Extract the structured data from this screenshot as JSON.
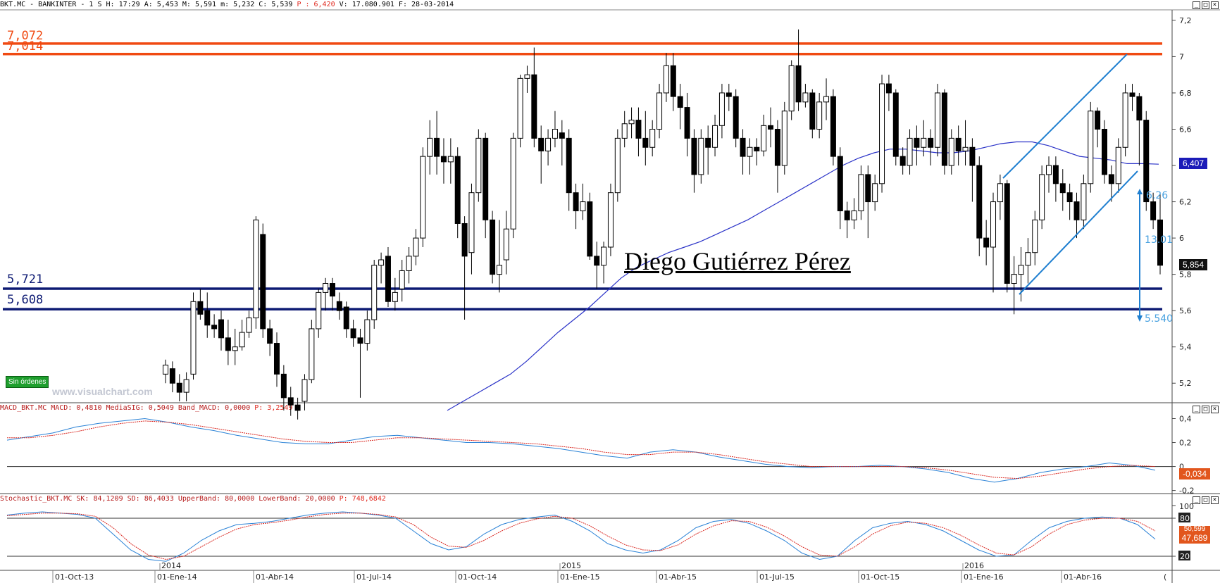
{
  "header_main": {
    "text": "BKT.MC - BANKINTER -  1 S H: 17:29 A: 5,453 M: 5,591 m: 5,232 C: 5,539 ",
    "p_label": "P : 6,420",
    "tail": " V: 17.080.901 F: 28-03-2014"
  },
  "header_macd": {
    "text": "MACD_BKT.MC MACD: 0,4810 MediaSIG: 0,5049 Band_MACD: 0,0000 ",
    "p_label": "P: 3,2549"
  },
  "header_stoch": {
    "text": "Stochastic_BKT.MC SK: 84,1209 SD: 86,4033 UpperBand: 80,0000 LowerBand: 20,0000 ",
    "p_label": "P: 748,6842"
  },
  "colors": {
    "resistance": "#f04a12",
    "support": "#0d1a73",
    "ma": "#2b33c8",
    "channel": "#1f7fd0",
    "macd_line": "#2a82d6",
    "signal_line": "#d9261f"
  },
  "levels": {
    "resistance_1": "7,072",
    "resistance_2": "7,014",
    "support_1": "5,721",
    "support_2": "5,608"
  },
  "badges": {
    "ma_value": "6,407",
    "last_price": "5,854",
    "macd_value": "-0,034",
    "stoch_value": "47,689",
    "stoch_hidden": "50,599"
  },
  "projection": {
    "top": "6.26",
    "pct": "13.01",
    "bottom": "5.540"
  },
  "overlay": {
    "sin_ordenes": "Sin órdenes",
    "watermark": "www.visualchart.com",
    "author": "Diego Gutiérrez Pérez"
  },
  "x_axis": {
    "years": [
      "2014",
      "2015",
      "2016"
    ],
    "months": [
      "01-Oct-13",
      "01-Ene-14",
      "01-Abr-14",
      "01-Jul-14",
      "01-Oct-14",
      "01-Ene-15",
      "01-Abr-15",
      "01-Jul-15",
      "01-Oct-15",
      "01-Ene-16",
      "01-Abr-16"
    ],
    "last": "("
  },
  "chart_data": [
    {
      "type": "candlestick",
      "title": "BKT.MC - BANKINTER - 1 S",
      "ylim": [
        5.1,
        7.25
      ],
      "y_ticks": [
        "7,2",
        "7",
        "6,8",
        "6,6",
        "6,4",
        "6,2",
        "6",
        "5,8",
        "5,6",
        "5,4",
        "5,2"
      ],
      "horizontal_levels": [
        7.072,
        7.014,
        5.721,
        5.608
      ],
      "candles": [
        [
          5.25,
          5.3,
          5.2,
          5.33
        ],
        [
          5.28,
          5.2,
          5.15,
          5.32
        ],
        [
          5.2,
          5.15,
          5.1,
          5.25
        ],
        [
          5.15,
          5.22,
          5.1,
          5.26
        ],
        [
          5.25,
          5.65,
          5.22,
          5.7
        ],
        [
          5.65,
          5.58,
          5.55,
          5.72
        ],
        [
          5.6,
          5.52,
          5.45,
          5.7
        ],
        [
          5.52,
          5.5,
          5.45,
          5.58
        ],
        [
          5.55,
          5.45,
          5.38,
          5.6
        ],
        [
          5.45,
          5.38,
          5.3,
          5.55
        ],
        [
          5.38,
          5.4,
          5.3,
          5.5
        ],
        [
          5.4,
          5.48,
          5.38,
          5.55
        ],
        [
          5.48,
          5.56,
          5.45,
          5.6
        ],
        [
          5.56,
          6.1,
          5.5,
          6.12
        ],
        [
          6.02,
          5.5,
          5.45,
          6.08
        ],
        [
          5.5,
          5.42,
          5.35,
          5.55
        ],
        [
          5.42,
          5.25,
          5.18,
          5.48
        ],
        [
          5.25,
          5.12,
          5.05,
          5.3
        ],
        [
          5.12,
          5.08,
          5.02,
          5.18
        ],
        [
          5.08,
          5.05,
          5.0,
          5.12
        ],
        [
          5.1,
          5.22,
          5.05,
          5.25
        ],
        [
          5.22,
          5.5,
          5.2,
          5.55
        ],
        [
          5.5,
          5.7,
          5.45,
          5.72
        ],
        [
          5.7,
          5.75,
          5.6,
          5.78
        ],
        [
          5.75,
          5.68,
          5.6,
          5.78
        ],
        [
          5.65,
          5.6,
          5.55,
          5.7
        ],
        [
          5.62,
          5.5,
          5.45,
          5.65
        ],
        [
          5.5,
          5.45,
          5.4,
          5.55
        ],
        [
          5.45,
          5.42,
          5.12,
          5.5
        ],
        [
          5.42,
          5.55,
          5.38,
          5.6
        ],
        [
          5.55,
          5.85,
          5.5,
          5.88
        ],
        [
          5.85,
          5.88,
          5.75,
          5.92
        ],
        [
          5.9,
          5.65,
          5.62,
          5.95
        ],
        [
          5.65,
          5.7,
          5.6,
          5.78
        ],
        [
          5.72,
          5.82,
          5.65,
          5.88
        ],
        [
          5.82,
          5.9,
          5.75,
          5.95
        ],
        [
          5.9,
          6.0,
          5.85,
          6.05
        ],
        [
          6.0,
          6.45,
          5.95,
          6.5
        ],
        [
          6.45,
          6.55,
          6.35,
          6.65
        ],
        [
          6.55,
          6.45,
          6.35,
          6.7
        ],
        [
          6.45,
          6.42,
          6.3,
          6.55
        ],
        [
          6.42,
          6.45,
          6.3,
          6.55
        ],
        [
          6.45,
          6.08,
          6.0,
          6.5
        ],
        [
          6.08,
          5.9,
          5.55,
          6.12
        ],
        [
          5.92,
          6.25,
          5.8,
          6.3
        ],
        [
          6.25,
          6.55,
          6.2,
          6.6
        ],
        [
          6.55,
          6.1,
          6.0,
          6.58
        ],
        [
          6.1,
          5.8,
          5.75,
          6.15
        ],
        [
          5.8,
          5.85,
          5.7,
          6.1
        ],
        [
          5.88,
          6.05,
          5.8,
          6.15
        ],
        [
          6.05,
          6.55,
          6.0,
          6.58
        ],
        [
          6.55,
          6.88,
          6.5,
          6.9
        ],
        [
          6.88,
          6.9,
          6.8,
          6.95
        ],
        [
          6.9,
          6.55,
          6.5,
          7.05
        ],
        [
          6.55,
          6.48,
          6.3,
          6.62
        ],
        [
          6.48,
          6.55,
          6.4,
          6.6
        ],
        [
          6.55,
          6.6,
          6.5,
          6.7
        ],
        [
          6.58,
          6.55,
          6.4,
          6.65
        ],
        [
          6.55,
          6.25,
          6.15,
          6.6
        ],
        [
          6.25,
          6.15,
          6.05,
          6.3
        ],
        [
          6.15,
          6.2,
          6.1,
          6.3
        ],
        [
          6.2,
          5.9,
          5.88,
          6.25
        ],
        [
          5.9,
          5.85,
          5.72,
          5.98
        ],
        [
          5.85,
          5.95,
          5.75,
          5.98
        ],
        [
          5.95,
          6.25,
          5.9,
          6.3
        ],
        [
          6.25,
          6.55,
          6.2,
          6.6
        ],
        [
          6.55,
          6.63,
          6.5,
          6.7
        ],
        [
          6.63,
          6.65,
          6.55,
          6.72
        ],
        [
          6.65,
          6.55,
          6.45,
          6.72
        ],
        [
          6.55,
          6.5,
          6.4,
          6.7
        ],
        [
          6.5,
          6.6,
          6.45,
          6.65
        ],
        [
          6.6,
          6.8,
          6.55,
          6.85
        ],
        [
          6.8,
          6.95,
          6.75,
          7.02
        ],
        [
          6.95,
          6.78,
          6.7,
          7.02
        ],
        [
          6.78,
          6.72,
          6.6,
          6.85
        ],
        [
          6.72,
          6.55,
          6.45,
          6.8
        ],
        [
          6.55,
          6.35,
          6.25,
          6.6
        ],
        [
          6.35,
          6.55,
          6.3,
          6.6
        ],
        [
          6.55,
          6.5,
          6.35,
          6.62
        ],
        [
          6.5,
          6.62,
          6.45,
          6.68
        ],
        [
          6.62,
          6.8,
          6.55,
          6.85
        ],
        [
          6.8,
          6.78,
          6.7,
          6.85
        ],
        [
          6.78,
          6.55,
          6.5,
          6.82
        ],
        [
          6.55,
          6.45,
          6.35,
          6.6
        ],
        [
          6.45,
          6.5,
          6.35,
          6.55
        ],
        [
          6.5,
          6.48,
          6.4,
          6.55
        ],
        [
          6.48,
          6.62,
          6.45,
          6.68
        ],
        [
          6.62,
          6.6,
          6.5,
          6.72
        ],
        [
          6.6,
          6.4,
          6.25,
          6.65
        ],
        [
          6.4,
          6.7,
          6.35,
          6.75
        ],
        [
          6.7,
          6.95,
          6.65,
          6.98
        ],
        [
          6.95,
          6.75,
          6.7,
          7.15
        ],
        [
          6.75,
          6.8,
          6.72,
          6.85
        ],
        [
          6.8,
          6.6,
          6.55,
          6.82
        ],
        [
          6.6,
          6.75,
          6.55,
          6.8
        ],
        [
          6.75,
          6.78,
          6.65,
          6.88
        ],
        [
          6.78,
          6.45,
          6.4,
          6.82
        ],
        [
          6.45,
          6.15,
          6.05,
          6.5
        ],
        [
          6.15,
          6.1,
          6.0,
          6.2
        ],
        [
          6.1,
          6.15,
          6.05,
          6.22
        ],
        [
          6.15,
          6.35,
          6.1,
          6.4
        ],
        [
          6.35,
          6.2,
          6.0,
          6.4
        ],
        [
          6.2,
          6.3,
          6.15,
          6.35
        ],
        [
          6.3,
          6.85,
          6.25,
          6.9
        ],
        [
          6.85,
          6.8,
          6.7,
          6.9
        ],
        [
          6.8,
          6.45,
          6.4,
          6.82
        ],
        [
          6.45,
          6.4,
          6.35,
          6.5
        ],
        [
          6.4,
          6.55,
          6.35,
          6.6
        ],
        [
          6.55,
          6.5,
          6.4,
          6.62
        ],
        [
          6.5,
          6.55,
          6.45,
          6.65
        ],
        [
          6.55,
          6.5,
          6.4,
          6.6
        ],
        [
          6.5,
          6.8,
          6.45,
          6.85
        ],
        [
          6.8,
          6.4,
          6.35,
          6.82
        ],
        [
          6.4,
          6.55,
          6.35,
          6.6
        ],
        [
          6.55,
          6.48,
          6.4,
          6.62
        ],
        [
          6.48,
          6.5,
          6.4,
          6.65
        ],
        [
          6.5,
          6.4,
          6.2,
          6.55
        ],
        [
          6.4,
          6.0,
          5.9,
          6.45
        ],
        [
          6.0,
          5.95,
          5.85,
          6.1
        ],
        [
          5.95,
          6.2,
          5.7,
          6.25
        ],
        [
          6.2,
          6.3,
          6.1,
          6.35
        ],
        [
          6.3,
          5.75,
          5.7,
          6.32
        ],
        [
          5.75,
          5.8,
          5.58,
          5.9
        ],
        [
          5.8,
          5.85,
          5.65,
          5.95
        ],
        [
          5.85,
          5.92,
          5.75,
          6.0
        ],
        [
          5.92,
          6.1,
          5.85,
          6.15
        ],
        [
          6.1,
          6.35,
          6.05,
          6.4
        ],
        [
          6.35,
          6.4,
          6.25,
          6.45
        ],
        [
          6.4,
          6.3,
          6.2,
          6.45
        ],
        [
          6.3,
          6.25,
          6.15,
          6.38
        ],
        [
          6.25,
          6.2,
          6.1,
          6.3
        ],
        [
          6.2,
          6.1,
          6.0,
          6.25
        ],
        [
          6.1,
          6.3,
          6.05,
          6.35
        ],
        [
          6.3,
          6.7,
          6.25,
          6.75
        ],
        [
          6.7,
          6.6,
          6.5,
          6.72
        ],
        [
          6.6,
          6.35,
          6.3,
          6.65
        ],
        [
          6.35,
          6.3,
          6.2,
          6.4
        ],
        [
          6.3,
          6.5,
          6.25,
          6.55
        ],
        [
          6.5,
          6.8,
          6.45,
          6.85
        ],
        [
          6.8,
          6.78,
          6.7,
          6.85
        ],
        [
          6.78,
          6.65,
          6.4,
          6.8
        ],
        [
          6.65,
          6.2,
          6.15,
          6.7
        ],
        [
          6.2,
          6.1,
          6.05,
          6.25
        ],
        [
          6.1,
          5.85,
          5.8,
          6.25
        ]
      ],
      "moving_average": [
        5.05,
        5.1,
        5.15,
        5.2,
        5.25,
        5.32,
        5.4,
        5.48,
        5.55,
        5.62,
        5.7,
        5.78,
        5.84,
        5.88,
        5.92,
        5.95,
        5.98,
        6.02,
        6.06,
        6.1,
        6.15,
        6.2,
        6.25,
        6.3,
        6.35,
        6.4,
        6.44,
        6.47,
        6.49,
        6.49,
        6.48,
        6.47,
        6.47,
        6.48,
        6.5,
        6.52,
        6.53,
        6.53,
        6.51,
        6.48,
        6.45,
        6.44,
        6.43,
        6.41,
        6.41,
        6.407
      ]
    },
    {
      "type": "line",
      "title": "MACD_BKT.MC",
      "ylim": [
        -0.22,
        0.45
      ],
      "y_ticks": [
        "0,4",
        "0,2",
        "0",
        "-0,2"
      ],
      "series": [
        {
          "name": "MACD",
          "values": [
            0.22,
            0.25,
            0.28,
            0.33,
            0.36,
            0.38,
            0.4,
            0.37,
            0.33,
            0.3,
            0.26,
            0.23,
            0.2,
            0.19,
            0.19,
            0.22,
            0.25,
            0.26,
            0.24,
            0.22,
            0.2,
            0.2,
            0.19,
            0.17,
            0.15,
            0.12,
            0.09,
            0.07,
            0.12,
            0.14,
            0.12,
            0.08,
            0.05,
            0.02,
            0.0,
            -0.01,
            0.0,
            0.0,
            0.01,
            0.0,
            -0.02,
            -0.05,
            -0.1,
            -0.13,
            -0.1,
            -0.05,
            -0.02,
            0.0,
            0.03,
            0.01,
            -0.03
          ]
        },
        {
          "name": "MediaSIG",
          "values": [
            0.24,
            0.24,
            0.26,
            0.29,
            0.33,
            0.36,
            0.38,
            0.37,
            0.35,
            0.32,
            0.29,
            0.26,
            0.23,
            0.21,
            0.2,
            0.2,
            0.22,
            0.24,
            0.24,
            0.23,
            0.22,
            0.21,
            0.2,
            0.19,
            0.17,
            0.15,
            0.12,
            0.1,
            0.1,
            0.12,
            0.12,
            0.1,
            0.07,
            0.04,
            0.02,
            0.0,
            0.0,
            0.0,
            0.0,
            0.0,
            -0.01,
            -0.03,
            -0.06,
            -0.09,
            -0.1,
            -0.08,
            -0.05,
            -0.02,
            0.0,
            0.01,
            0.0
          ]
        }
      ]
    },
    {
      "type": "line",
      "title": "Stochastic_BKT.MC",
      "ylim": [
        0,
        100
      ],
      "y_ticks": [
        "100",
        "80",
        "20"
      ],
      "band_values": [
        80,
        20
      ],
      "series": [
        {
          "name": "SK",
          "values": [
            85,
            88,
            90,
            88,
            86,
            80,
            55,
            30,
            15,
            12,
            25,
            45,
            60,
            70,
            72,
            75,
            80,
            85,
            88,
            90,
            88,
            85,
            80,
            60,
            40,
            30,
            35,
            55,
            70,
            78,
            82,
            85,
            75,
            60,
            40,
            30,
            25,
            30,
            45,
            65,
            75,
            78,
            72,
            60,
            45,
            25,
            15,
            20,
            45,
            65,
            72,
            75,
            70,
            60,
            45,
            30,
            20,
            22,
            45,
            65,
            75,
            80,
            82,
            80,
            70,
            47
          ]
        },
        {
          "name": "SD",
          "values": [
            84,
            86,
            88,
            88,
            87,
            83,
            65,
            40,
            22,
            15,
            20,
            35,
            50,
            63,
            70,
            73,
            77,
            82,
            86,
            88,
            88,
            86,
            82,
            70,
            50,
            36,
            34,
            45,
            60,
            72,
            79,
            83,
            80,
            68,
            52,
            38,
            30,
            29,
            38,
            55,
            68,
            76,
            75,
            66,
            52,
            35,
            22,
            20,
            35,
            55,
            68,
            74,
            72,
            65,
            53,
            38,
            25,
            22,
            35,
            55,
            70,
            77,
            80,
            80,
            75,
            60
          ]
        }
      ]
    }
  ]
}
